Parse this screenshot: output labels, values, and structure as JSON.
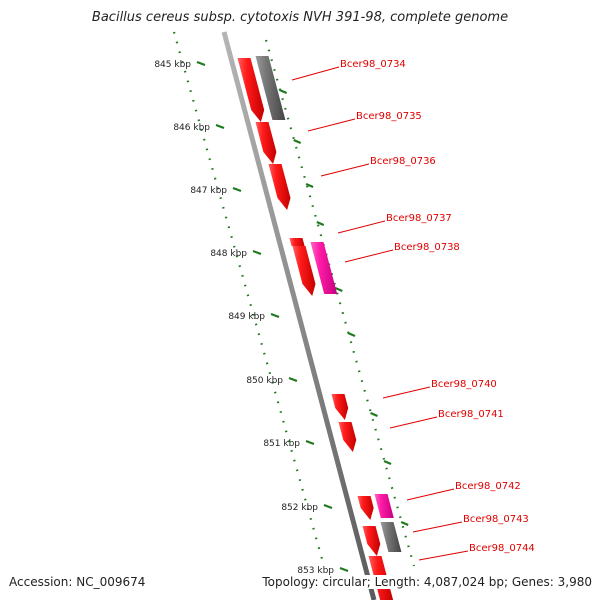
{
  "title": "Bacillus cereus subsp. cytotoxis NVH 391-98, complete genome",
  "footer": {
    "accession": "Accession: NC_009674",
    "summary": "Topology: circular; Length: 4,087,024 bp; Genes: 3,980"
  },
  "scale_ticks": [
    "845 kbp",
    "846 kbp",
    "847 kbp",
    "848 kbp",
    "849 kbp",
    "850 kbp",
    "851 kbp",
    "852 kbp",
    "853 kbp"
  ],
  "genes": [
    {
      "label": "Bcer98_0734"
    },
    {
      "label": "Bcer98_0735"
    },
    {
      "label": "Bcer98_0736"
    },
    {
      "label": "Bcer98_0737"
    },
    {
      "label": "Bcer98_0738"
    },
    {
      "label": "Bcer98_0740"
    },
    {
      "label": "Bcer98_0741"
    },
    {
      "label": "Bcer98_0742"
    },
    {
      "label": "Bcer98_0743"
    },
    {
      "label": "Bcer98_0744"
    }
  ],
  "colors": {
    "backbone": "#8a8a8a",
    "scale": "#1f7a1f",
    "gene_cds": "#ee1111",
    "gene_other": "#ee1199",
    "gene_gray": "#6a6a6a",
    "label": "#e00000"
  }
}
